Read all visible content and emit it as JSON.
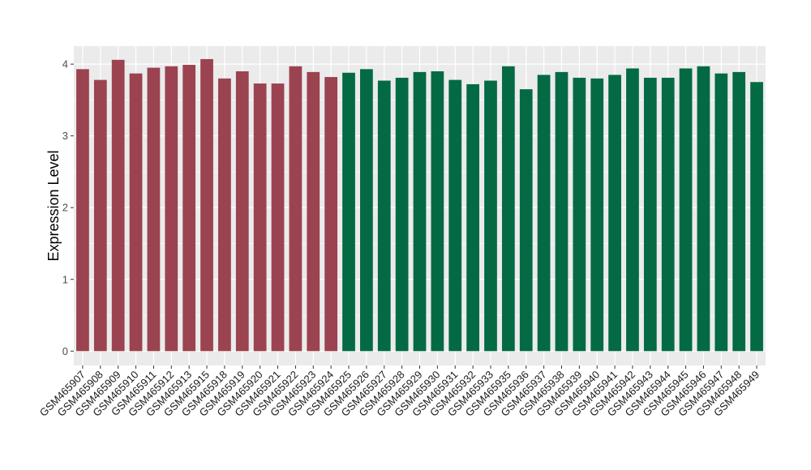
{
  "chart_data": {
    "type": "bar",
    "title": "",
    "xlabel": "",
    "ylabel": "Expression Level",
    "ylim": [
      -0.2,
      4.25
    ],
    "y_ticks": [
      0,
      1,
      2,
      3,
      4
    ],
    "grid": true,
    "legend": "none",
    "categories": [
      "GSM465907",
      "GSM465908",
      "GSM465909",
      "GSM465910",
      "GSM465911",
      "GSM465912",
      "GSM465913",
      "GSM465915",
      "GSM465918",
      "GSM465919",
      "GSM465920",
      "GSM465921",
      "GSM465922",
      "GSM465923",
      "GSM465924",
      "GSM465925",
      "GSM465926",
      "GSM465927",
      "GSM465928",
      "GSM465929",
      "GSM465930",
      "GSM465931",
      "GSM465932",
      "GSM465933",
      "GSM465935",
      "GSM465936",
      "GSM465937",
      "GSM465938",
      "GSM465939",
      "GSM465940",
      "GSM465941",
      "GSM465942",
      "GSM465943",
      "GSM465944",
      "GSM465945",
      "GSM465946",
      "GSM465947",
      "GSM465948",
      "GSM465949"
    ],
    "values": [
      3.93,
      3.78,
      4.06,
      3.87,
      3.95,
      3.97,
      3.99,
      4.07,
      3.8,
      3.9,
      3.73,
      3.73,
      3.97,
      3.89,
      3.82,
      3.88,
      3.93,
      3.77,
      3.81,
      3.89,
      3.9,
      3.78,
      3.72,
      3.77,
      3.97,
      3.65,
      3.85,
      3.89,
      3.81,
      3.8,
      3.85,
      3.94,
      3.81,
      3.81,
      3.94,
      3.97,
      3.87,
      3.89,
      3.75
    ],
    "group_sizes": [
      15,
      24
    ],
    "colors": [
      "#9b4350",
      "#046a44"
    ],
    "panel_background": "#ebebeb",
    "grid_color": "#ffffff"
  }
}
